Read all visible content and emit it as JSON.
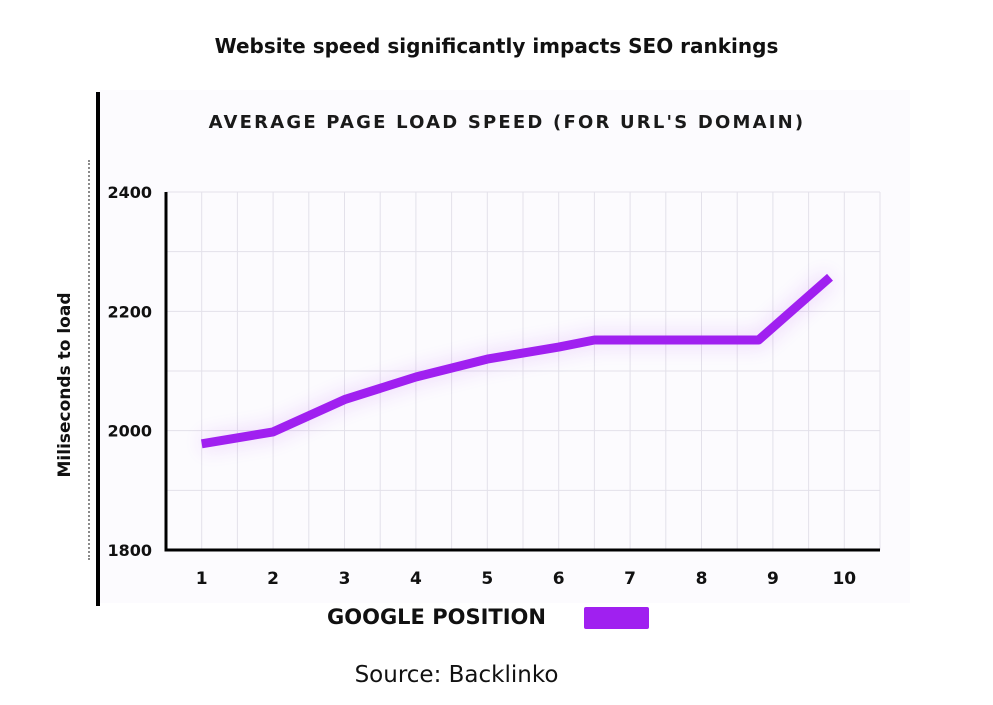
{
  "page": {
    "title": "Website speed significantly impacts SEO rankings",
    "source": "Source: Backlinko"
  },
  "chart_data": {
    "type": "line",
    "title": "AVERAGE PAGE LOAD SPEED (FOR URL'S DOMAIN)",
    "xlabel": "GOOGLE POSITION",
    "ylabel": "Miliseconds to load",
    "categories": [
      "1",
      "2",
      "3",
      "4",
      "5",
      "6",
      "7",
      "8",
      "9",
      "10"
    ],
    "x": [
      1,
      2,
      3,
      4,
      5,
      6,
      6.5,
      8,
      8.8,
      9.8
    ],
    "series": [
      {
        "values": [
          1978,
          1998,
          2052,
          2090,
          2120,
          2140,
          2152,
          2152,
          2152,
          2257
        ],
        "color": "#a020f0"
      }
    ],
    "yticks": [
      "1800",
      "2000",
      "2200",
      "2400"
    ],
    "ylim": [
      1800,
      2400
    ],
    "xlim": [
      0.5,
      10.5
    ],
    "grid": true,
    "legend_color": "#a020f0"
  }
}
